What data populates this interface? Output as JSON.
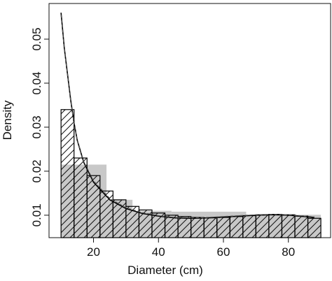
{
  "chart_data": {
    "type": "histogram",
    "x_label": "Diameter (cm)",
    "y_label": "Density",
    "xlim": [
      6.3,
      93
    ],
    "ylim": [
      0.0049,
      0.0581
    ],
    "xticks": [
      20,
      40,
      60,
      80
    ],
    "yticks": [
      0.01,
      0.02,
      0.03,
      0.04,
      0.05
    ],
    "series": [
      {
        "kind": "histogram",
        "color": "#c8c8c8",
        "bins": [
          10,
          24,
          32,
          44,
          67,
          90
        ],
        "values": [
          0.0215,
          0.0135,
          0.011,
          0.0108,
          0.0101
        ]
      },
      {
        "kind": "histogram",
        "color": "#000000",
        "hatch": true,
        "bins": [
          10,
          14,
          18,
          22,
          26,
          30,
          34,
          38,
          42,
          46,
          50,
          54,
          58,
          62,
          66,
          70,
          74,
          78,
          82,
          86,
          90
        ],
        "values": [
          0.034,
          0.023,
          0.019,
          0.0155,
          0.0135,
          0.012,
          0.0112,
          0.0105,
          0.01,
          0.0097,
          0.0095,
          0.0094,
          0.0095,
          0.0097,
          0.0099,
          0.0101,
          0.0102,
          0.0101,
          0.0098,
          0.0093
        ]
      },
      {
        "kind": "line",
        "color": "#000000",
        "x": [
          10,
          11,
          12,
          13,
          14,
          15,
          17,
          20,
          25,
          30,
          35,
          40,
          45,
          50,
          55,
          60,
          65,
          70,
          75,
          80,
          85,
          88
        ],
        "values": [
          0.056,
          0.048,
          0.042,
          0.036,
          0.031,
          0.027,
          0.022,
          0.0175,
          0.0135,
          0.0115,
          0.0104,
          0.0098,
          0.0094,
          0.0093,
          0.0094,
          0.0096,
          0.0098,
          0.01,
          0.0101,
          0.01,
          0.0097,
          0.0095
        ]
      },
      {
        "kind": "line",
        "color": "#555555",
        "dashed": true,
        "x": [
          10,
          11,
          12,
          13,
          14,
          15,
          17,
          20,
          25,
          30,
          35,
          40,
          45,
          50,
          55,
          60,
          65,
          70,
          75,
          80,
          85,
          88
        ],
        "values": [
          0.0555,
          0.0478,
          0.0418,
          0.0358,
          0.0309,
          0.0271,
          0.0222,
          0.0178,
          0.0138,
          0.0117,
          0.0106,
          0.0099,
          0.0095,
          0.0094,
          0.0095,
          0.0097,
          0.0099,
          0.0101,
          0.0102,
          0.0101,
          0.0098,
          0.0096
        ]
      }
    ]
  }
}
